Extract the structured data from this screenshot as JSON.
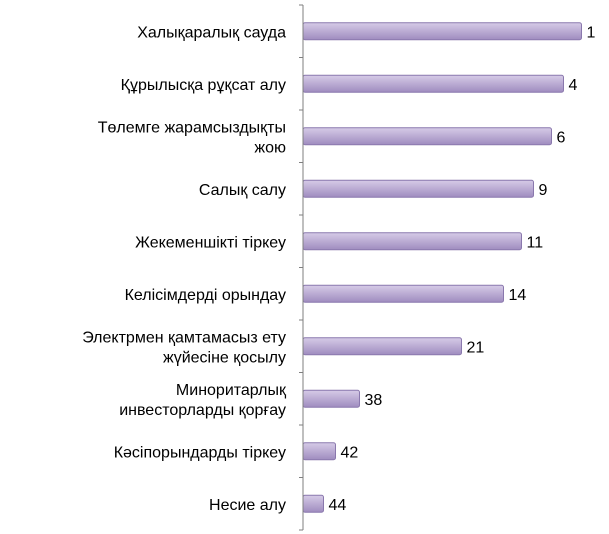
{
  "chart_data": {
    "type": "bar",
    "orientation": "horizontal",
    "categories": [
      [
        "Халықаралық сауда"
      ],
      [
        "Құрылысқа рұқсат алу"
      ],
      [
        "Төлемге жарамсыздықты",
        "жою"
      ],
      [
        "Салық салу"
      ],
      [
        "Жекеменшікті тіркеу"
      ],
      [
        "Келісімдерді орындау"
      ],
      [
        "Электрмен қамтамасыз ету",
        "жүйесіне қосылу"
      ],
      [
        "Миноритарлық",
        "инвесторларды қорғау"
      ],
      [
        "Кәсіпорындарды тіркеу"
      ],
      [
        "Несие алу"
      ]
    ],
    "values": [
      1,
      4,
      6,
      9,
      11,
      14,
      21,
      38,
      42,
      44
    ],
    "axis": "reversed (rank 1 is the longest bar)",
    "data_labels": true,
    "grid": false,
    "legend": "none",
    "colors": {
      "bar_fill_top": "#d6cbe7",
      "bar_fill_bottom": "#9f8cbf",
      "bar_stroke": "#8a78ad",
      "axis": "#7f7f7f"
    }
  }
}
